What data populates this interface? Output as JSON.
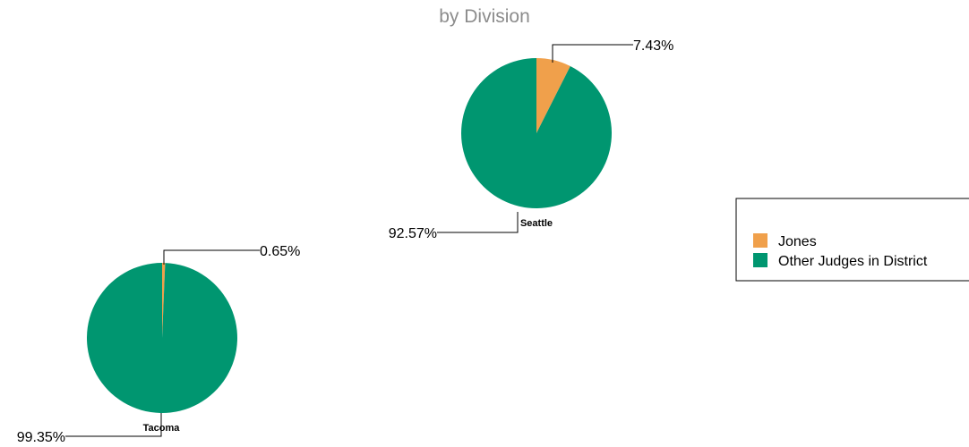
{
  "chart_data": {
    "type": "pie",
    "title": "by Division",
    "colors": {
      "Jones": "#f0a04b",
      "Other Judges in District": "#009670"
    },
    "legend": {
      "placement": "right",
      "entries": [
        "Jones",
        "Other Judges in District"
      ]
    },
    "pies": [
      {
        "name": "Seattle",
        "slices": [
          {
            "name": "Jones",
            "value": 7.43,
            "label": "7.43%"
          },
          {
            "name": "Other Judges in District",
            "value": 92.57,
            "label": "92.57%"
          }
        ]
      },
      {
        "name": "Tacoma",
        "slices": [
          {
            "name": "Jones",
            "value": 0.65,
            "label": "0.65%"
          },
          {
            "name": "Other Judges in District",
            "value": 99.35,
            "label": "99.35%"
          }
        ]
      }
    ]
  }
}
